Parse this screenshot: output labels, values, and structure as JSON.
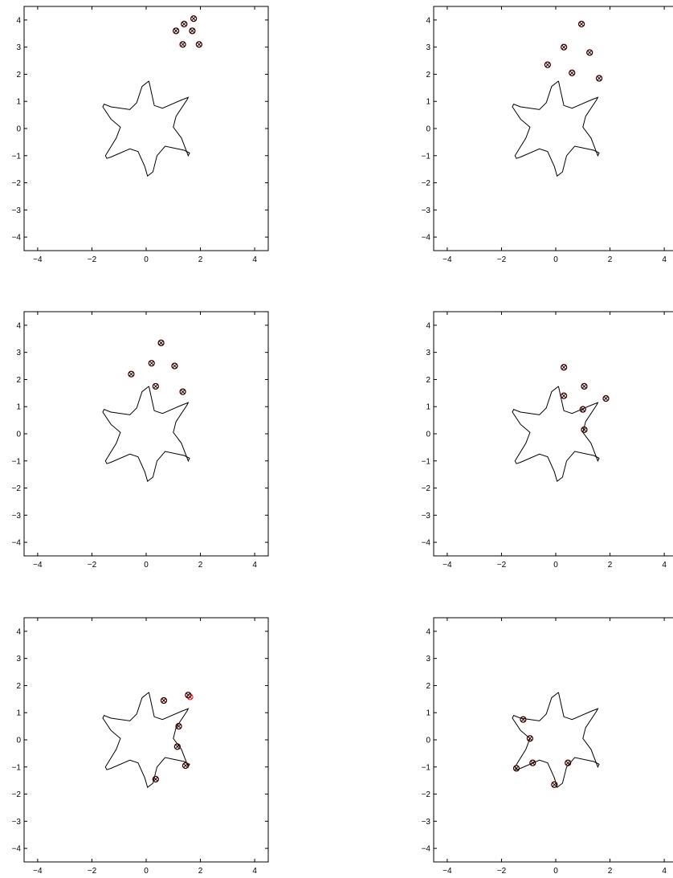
{
  "chart_data": [
    {
      "type": "scatter",
      "title": "",
      "xlabel": "",
      "ylabel": "",
      "xlim": [
        -4.5,
        4.5
      ],
      "ylim": [
        -4.5,
        4.5
      ],
      "xticks": [
        -4,
        -2,
        0,
        2,
        4
      ],
      "yticks": [
        -4,
        -3,
        -2,
        -1,
        0,
        1,
        2,
        3,
        4
      ],
      "xtick_labels": [
        "−4",
        "−2",
        "0",
        "2",
        "4"
      ],
      "ytick_labels": [
        "−4",
        "−3",
        "−2",
        "−1",
        "0",
        "1",
        "2",
        "3",
        "4"
      ],
      "grid": false,
      "points": [
        {
          "x": 1.1,
          "y": 3.6
        },
        {
          "x": 1.4,
          "y": 3.85
        },
        {
          "x": 1.75,
          "y": 4.05
        },
        {
          "x": 1.7,
          "y": 3.6
        },
        {
          "x": 1.35,
          "y": 3.1
        },
        {
          "x": 1.95,
          "y": 3.1
        }
      ]
    },
    {
      "type": "scatter",
      "title": "",
      "xlabel": "",
      "ylabel": "",
      "xlim": [
        -4.5,
        4.5
      ],
      "ylim": [
        -4.5,
        4.5
      ],
      "xticks": [
        -4,
        -2,
        0,
        2,
        4
      ],
      "yticks": [
        -4,
        -3,
        -2,
        -1,
        0,
        1,
        2,
        3,
        4
      ],
      "xtick_labels": [
        "−4",
        "−2",
        "0",
        "2",
        "4"
      ],
      "ytick_labels": [
        "−4",
        "−3",
        "−2",
        "−1",
        "0",
        "1",
        "2",
        "3",
        "4"
      ],
      "grid": false,
      "points": [
        {
          "x": 0.95,
          "y": 3.85
        },
        {
          "x": 0.3,
          "y": 3.0
        },
        {
          "x": 1.25,
          "y": 2.8
        },
        {
          "x": -0.3,
          "y": 2.35
        },
        {
          "x": 0.6,
          "y": 2.05
        },
        {
          "x": 1.6,
          "y": 1.85
        }
      ]
    },
    {
      "type": "scatter",
      "title": "",
      "xlabel": "",
      "ylabel": "",
      "xlim": [
        -4.5,
        4.5
      ],
      "ylim": [
        -4.5,
        4.5
      ],
      "xticks": [
        -4,
        -2,
        0,
        2,
        4
      ],
      "yticks": [
        -4,
        -3,
        -2,
        -1,
        0,
        1,
        2,
        3,
        4
      ],
      "xtick_labels": [
        "−4",
        "−2",
        "0",
        "2",
        "4"
      ],
      "ytick_labels": [
        "−4",
        "−3",
        "−2",
        "−1",
        "0",
        "1",
        "2",
        "3",
        "4"
      ],
      "grid": false,
      "points": [
        {
          "x": 0.55,
          "y": 3.35
        },
        {
          "x": 0.2,
          "y": 2.6
        },
        {
          "x": 1.05,
          "y": 2.5
        },
        {
          "x": -0.55,
          "y": 2.2
        },
        {
          "x": 0.35,
          "y": 1.75
        },
        {
          "x": 1.35,
          "y": 1.55
        }
      ]
    },
    {
      "type": "scatter",
      "title": "",
      "xlabel": "",
      "ylabel": "",
      "xlim": [
        -4.5,
        4.5
      ],
      "ylim": [
        -4.5,
        4.5
      ],
      "xticks": [
        -4,
        -2,
        0,
        2,
        4
      ],
      "yticks": [
        -4,
        -3,
        -2,
        -1,
        0,
        1,
        2,
        3,
        4
      ],
      "xtick_labels": [
        "−4",
        "−2",
        "0",
        "2",
        "4"
      ],
      "ytick_labels": [
        "−4",
        "−3",
        "−2",
        "−1",
        "0",
        "1",
        "2",
        "3",
        "4"
      ],
      "grid": false,
      "points": [
        {
          "x": 0.3,
          "y": 2.45
        },
        {
          "x": 1.05,
          "y": 1.75
        },
        {
          "x": 0.3,
          "y": 1.4
        },
        {
          "x": 1.85,
          "y": 1.3
        },
        {
          "x": 1.0,
          "y": 0.9
        },
        {
          "x": 1.05,
          "y": 0.15
        }
      ]
    },
    {
      "type": "scatter",
      "title": "",
      "xlabel": "",
      "ylabel": "",
      "xlim": [
        -4.5,
        4.5
      ],
      "ylim": [
        -4.5,
        4.5
      ],
      "xticks": [
        -4,
        -2,
        0,
        2,
        4
      ],
      "yticks": [
        -4,
        -3,
        -2,
        -1,
        0,
        1,
        2,
        3,
        4
      ],
      "xtick_labels": [
        "−4",
        "−2",
        "0",
        "2",
        "4"
      ],
      "ytick_labels": [
        "−4",
        "−3",
        "−2",
        "−1",
        "0",
        "1",
        "2",
        "3",
        "4"
      ],
      "grid": false,
      "points": [
        {
          "x": 1.55,
          "y": 1.65
        },
        {
          "x": 0.65,
          "y": 1.45
        },
        {
          "x": 1.2,
          "y": 0.5
        },
        {
          "x": 1.15,
          "y": -0.25
        },
        {
          "x": 1.45,
          "y": -0.95
        },
        {
          "x": 0.35,
          "y": -1.45
        }
      ],
      "red_offset_points": [
        {
          "x": 1.62,
          "y": 1.58
        }
      ]
    },
    {
      "type": "scatter",
      "title": "",
      "xlabel": "",
      "ylabel": "",
      "xlim": [
        -4.5,
        4.5
      ],
      "ylim": [
        -4.5,
        4.5
      ],
      "xticks": [
        -4,
        -2,
        0,
        2,
        4
      ],
      "yticks": [
        -4,
        -3,
        -2,
        -1,
        0,
        1,
        2,
        3,
        4
      ],
      "xtick_labels": [
        "−4",
        "−2",
        "0",
        "2",
        "4"
      ],
      "ytick_labels": [
        "−4",
        "−3",
        "−2",
        "−1",
        "0",
        "1",
        "2",
        "3",
        "4"
      ],
      "grid": false,
      "points": [
        {
          "x": -1.2,
          "y": 0.75
        },
        {
          "x": -0.95,
          "y": 0.05
        },
        {
          "x": -0.85,
          "y": -0.85
        },
        {
          "x": 0.45,
          "y": -0.85
        },
        {
          "x": -0.05,
          "y": -1.65
        },
        {
          "x": -1.45,
          "y": -1.05
        }
      ]
    }
  ],
  "star_shape": {
    "points": [
      [
        0.1,
        1.75
      ],
      [
        -0.15,
        1.55
      ],
      [
        -0.35,
        0.95
      ],
      [
        -0.6,
        0.7
      ],
      [
        -1.3,
        0.8
      ],
      [
        -1.55,
        0.9
      ],
      [
        -1.6,
        0.8
      ],
      [
        -1.3,
        0.35
      ],
      [
        -0.95,
        0.05
      ],
      [
        -1.1,
        -0.35
      ],
      [
        -1.5,
        -1.0
      ],
      [
        -1.45,
        -1.1
      ],
      [
        -1.3,
        -1.05
      ],
      [
        -0.6,
        -0.75
      ],
      [
        -0.3,
        -0.85
      ],
      [
        -0.05,
        -1.4
      ],
      [
        0.05,
        -1.75
      ],
      [
        0.25,
        -1.6
      ],
      [
        0.4,
        -1.0
      ],
      [
        0.7,
        -0.65
      ],
      [
        1.4,
        -0.8
      ],
      [
        1.6,
        -0.9
      ],
      [
        1.55,
        -1.0
      ],
      [
        1.3,
        -0.35
      ],
      [
        1.0,
        0.05
      ],
      [
        1.1,
        0.45
      ],
      [
        1.5,
        1.05
      ],
      [
        1.55,
        1.15
      ],
      [
        1.3,
        1.05
      ],
      [
        0.6,
        0.75
      ],
      [
        0.3,
        0.85
      ],
      [
        0.1,
        1.75
      ]
    ]
  },
  "colors": {
    "axis": "#000000",
    "star_line": "#000000",
    "marker_red": "#ff0000",
    "marker_black": "#000000"
  }
}
